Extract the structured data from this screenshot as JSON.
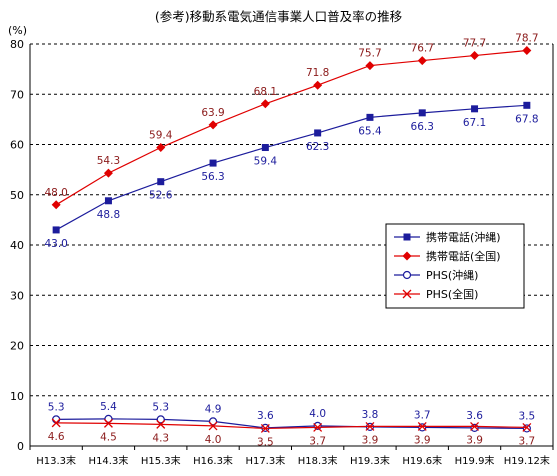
{
  "chart_data": {
    "type": "line",
    "title": "(参考)移動系電気通信事業人口普及率の推移",
    "unit_label": "(%)",
    "xlabel": "",
    "ylabel": "",
    "ylim": [
      0,
      80
    ],
    "yticks": [
      0,
      10,
      20,
      30,
      40,
      50,
      60,
      70,
      80
    ],
    "grid": true,
    "legend_position": "right",
    "categories": [
      "H13.3末",
      "H14.3末",
      "H15.3末",
      "H16.3末",
      "H17.3末",
      "H18.3末",
      "H19.3末",
      "H19.6末",
      "H19.9末",
      "H19.12末"
    ],
    "series": [
      {
        "name": "携帯電話(沖縄)",
        "color": "#1c1c9c",
        "marker": "square",
        "values": [
          43.0,
          48.8,
          52.6,
          56.3,
          59.4,
          62.3,
          65.4,
          66.3,
          67.1,
          67.8
        ],
        "labels": [
          "43.0",
          "48.8",
          "52.6",
          "56.3",
          "59.4",
          "62.3",
          "65.4",
          "66.3",
          "67.1",
          "67.8"
        ]
      },
      {
        "name": "携帯電話(全国)",
        "color": "#e00000",
        "marker": "diamond",
        "values": [
          48.0,
          54.3,
          59.4,
          63.9,
          68.1,
          71.8,
          75.7,
          76.7,
          77.7,
          78.7
        ],
        "labels": [
          "48.0",
          "54.3",
          "59.4",
          "63.9",
          "68.1",
          "71.8",
          "75.7",
          "76.7",
          "77.7",
          "78.7"
        ]
      },
      {
        "name": "PHS(沖縄)",
        "color": "#1c1c9c",
        "marker": "circle",
        "values": [
          5.3,
          5.4,
          5.3,
          4.9,
          3.6,
          4.0,
          3.8,
          3.7,
          3.6,
          3.5
        ],
        "labels": [
          "5.3",
          "5.4",
          "5.3",
          "4.9",
          "3.6",
          "4.0",
          "3.8",
          "3.7",
          "3.6",
          "3.5"
        ]
      },
      {
        "name": "PHS(全国)",
        "color": "#e00000",
        "marker": "x",
        "values": [
          4.6,
          4.5,
          4.3,
          4.0,
          3.5,
          3.7,
          3.9,
          3.9,
          3.9,
          3.7
        ],
        "labels": [
          "4.6",
          "4.5",
          "4.3",
          "4.0",
          "3.5",
          "3.7",
          "3.9",
          "3.9",
          "3.9",
          "3.7"
        ]
      }
    ],
    "label_colors": [
      "#1c1c9c",
      "#8b1a1a",
      "#1c1c9c",
      "#8b1a1a"
    ],
    "label_positions": [
      "below",
      "above",
      "above",
      "below"
    ]
  }
}
